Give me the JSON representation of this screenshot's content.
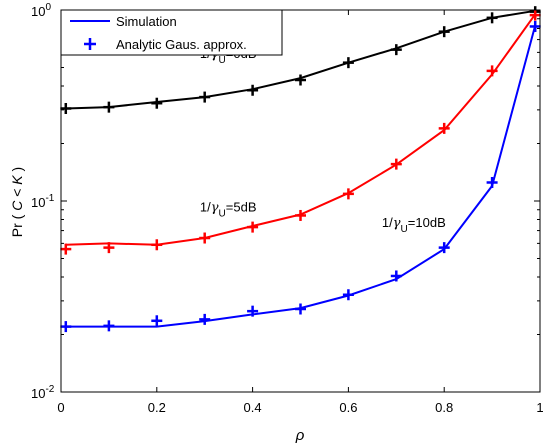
{
  "chart_data": {
    "type": "line",
    "xlabel": "ρ",
    "ylabel_parts": {
      "prefix": "Pr ( ",
      "c": "C",
      "op": " < ",
      "k": "K",
      "suffix": " )"
    },
    "xlim": [
      0,
      1
    ],
    "ylim": [
      0.01,
      1
    ],
    "yscale": "log",
    "grid": false,
    "legend_placement": "top-left",
    "x_ticks": [
      {
        "value": 0,
        "label": "0"
      },
      {
        "value": 0.2,
        "label": "0.2"
      },
      {
        "value": 0.4,
        "label": "0.4"
      },
      {
        "value": 0.6,
        "label": "0.6"
      },
      {
        "value": 0.8,
        "label": "0.8"
      },
      {
        "value": 1,
        "label": "1"
      }
    ],
    "y_ticks": [
      {
        "value": 0.01,
        "base": "10",
        "exp": "-2"
      },
      {
        "value": 0.1,
        "base": "10",
        "exp": "-1"
      },
      {
        "value": 1,
        "base": "10",
        "exp": "0"
      }
    ],
    "legend": {
      "line_label": "Simulation",
      "marker_label": "Analytic Gaus. approx."
    },
    "annotations": [
      {
        "prefix": "1/",
        "greek": "γ",
        "sub": "U",
        "suffix": "=0dB",
        "x": 0.29,
        "y": 0.56
      },
      {
        "prefix": "1/",
        "greek": "γ",
        "sub": "U",
        "suffix": "=5dB",
        "x": 0.29,
        "y": 0.088
      },
      {
        "prefix": "1/",
        "greek": "γ",
        "sub": "U",
        "suffix": "=10dB",
        "x": 0.67,
        "y": 0.073
      }
    ],
    "x": [
      0.01,
      0.1,
      0.2,
      0.3,
      0.4,
      0.5,
      0.6,
      0.7,
      0.8,
      0.9,
      0.99
    ],
    "series": [
      {
        "color": "#000000",
        "simulation": [
          0.305,
          0.31,
          0.33,
          0.35,
          0.385,
          0.44,
          0.53,
          0.63,
          0.77,
          0.91,
          0.99
        ],
        "analytic": [
          0.305,
          0.31,
          0.325,
          0.35,
          0.38,
          0.43,
          0.53,
          0.62,
          0.77,
          0.91,
          0.98
        ]
      },
      {
        "color": "#ff0000",
        "simulation": [
          0.059,
          0.06,
          0.059,
          0.064,
          0.074,
          0.085,
          0.11,
          0.155,
          0.235,
          0.46,
          0.95
        ],
        "analytic": [
          0.056,
          0.057,
          0.059,
          0.064,
          0.073,
          0.084,
          0.109,
          0.156,
          0.24,
          0.48,
          0.94
        ]
      },
      {
        "color": "#0000ff",
        "simulation": [
          0.022,
          0.022,
          0.022,
          0.0235,
          0.0255,
          0.0275,
          0.032,
          0.039,
          0.056,
          0.12,
          0.83
        ],
        "analytic": [
          0.022,
          0.0222,
          0.0236,
          0.024,
          0.0265,
          0.0272,
          0.0323,
          0.0405,
          0.057,
          0.125,
          0.82
        ]
      }
    ]
  }
}
